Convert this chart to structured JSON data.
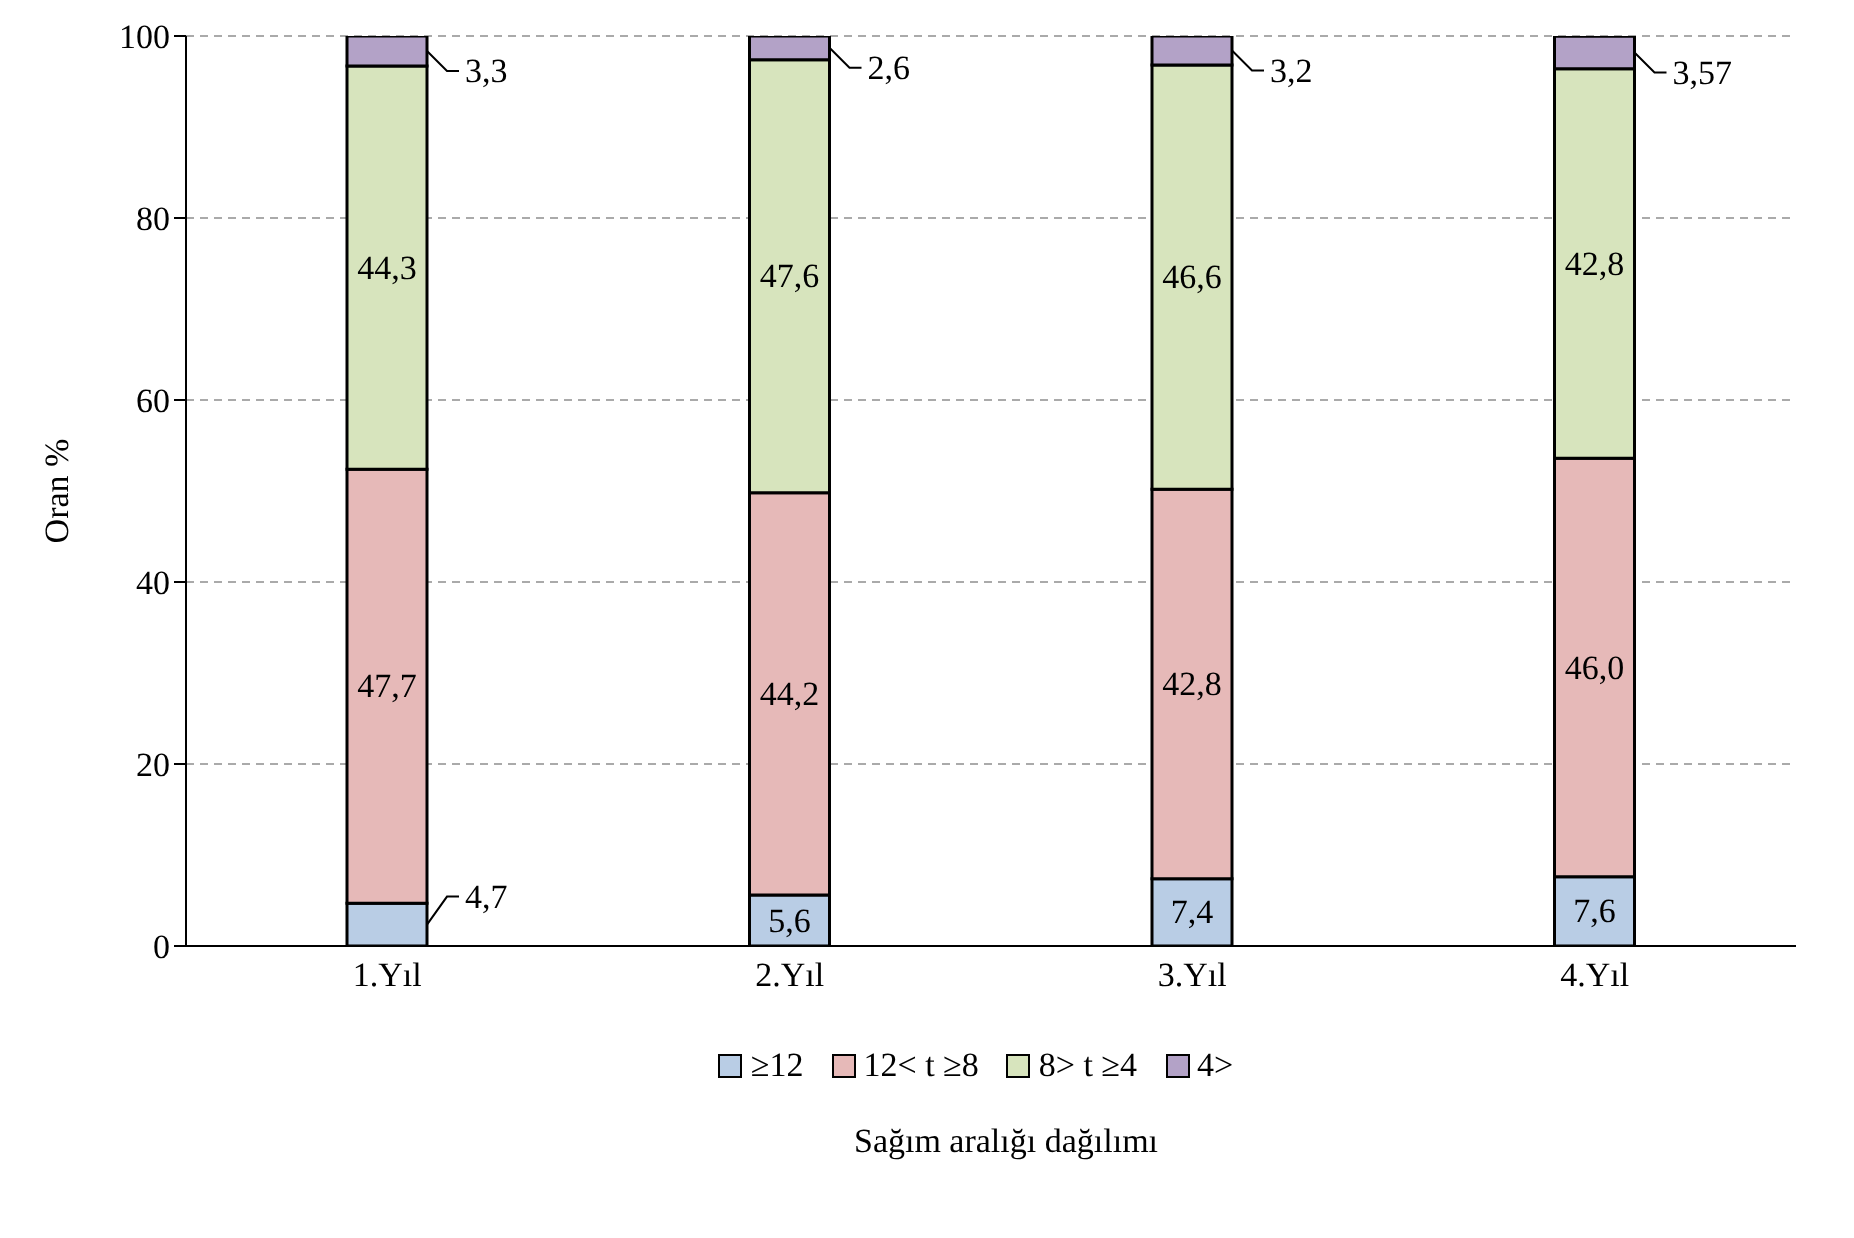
{
  "chart_data": {
    "type": "bar",
    "stacked": true,
    "xlabel": "Sağım aralığı dağılımı",
    "ylabel": "Oran %",
    "categories": [
      "1.Yıl",
      "2.Yıl",
      "3.Yıl",
      "4.Yıl"
    ],
    "series": [
      {
        "name": "≥12",
        "color": "#b9cde5",
        "values": [
          4.7,
          5.6,
          7.4,
          7.6
        ],
        "value_labels": [
          "4,7",
          "5,6",
          "7,4",
          "7,6"
        ]
      },
      {
        "name": "12< t ≥8",
        "color": "#e6b9b8",
        "values": [
          47.7,
          44.2,
          42.8,
          46.0
        ],
        "value_labels": [
          "47,7",
          "44,2",
          "42,8",
          "46,0"
        ]
      },
      {
        "name": "8> t ≥4",
        "color": "#d7e4bd",
        "values": [
          44.3,
          47.6,
          46.6,
          42.8
        ],
        "value_labels": [
          "44,3",
          "47,6",
          "46,6",
          "42,8"
        ]
      },
      {
        "name": "4>",
        "color": "#b3a2c7",
        "values": [
          3.3,
          2.6,
          3.2,
          3.57
        ],
        "value_labels": [
          "3,3",
          "2,6",
          "3,2",
          "3,57"
        ]
      }
    ],
    "ylim": [
      0,
      100
    ],
    "yticks": [
      0,
      20,
      40,
      60,
      80,
      100
    ],
    "grid": "y",
    "legend": "bottom"
  }
}
